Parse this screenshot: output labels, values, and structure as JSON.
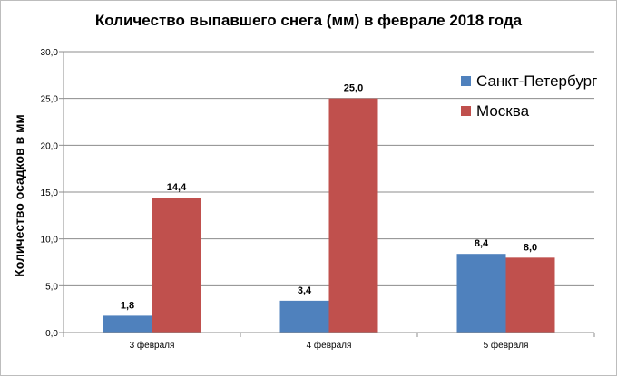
{
  "chart_data": {
    "type": "bar",
    "title": "Количество выпавшего снега (мм)  в феврале  2018 года",
    "ylabel": "Количество осадков  в мм",
    "xlabel": "",
    "categories": [
      "3 февраля",
      "4 февраля",
      "5 февраля"
    ],
    "series": [
      {
        "name": "Санкт-Петербург",
        "color": "#4f81bd",
        "values": [
          1.8,
          3.4,
          8.4
        ],
        "labels": [
          "1,8",
          "3,4",
          "8,4"
        ]
      },
      {
        "name": "Москва",
        "color": "#c0504d",
        "values": [
          14.4,
          25.0,
          8.0
        ],
        "labels": [
          "14,4",
          "25,0",
          "8,0"
        ]
      }
    ],
    "ylim": [
      0,
      30
    ],
    "yticks": [
      0,
      5,
      10,
      15,
      20,
      25,
      30
    ],
    "ytick_labels": [
      "0,0",
      "5,0",
      "10,0",
      "15,0",
      "20,0",
      "25,0",
      "30,0"
    ],
    "grid": "horizontal",
    "legend_position": "right"
  }
}
